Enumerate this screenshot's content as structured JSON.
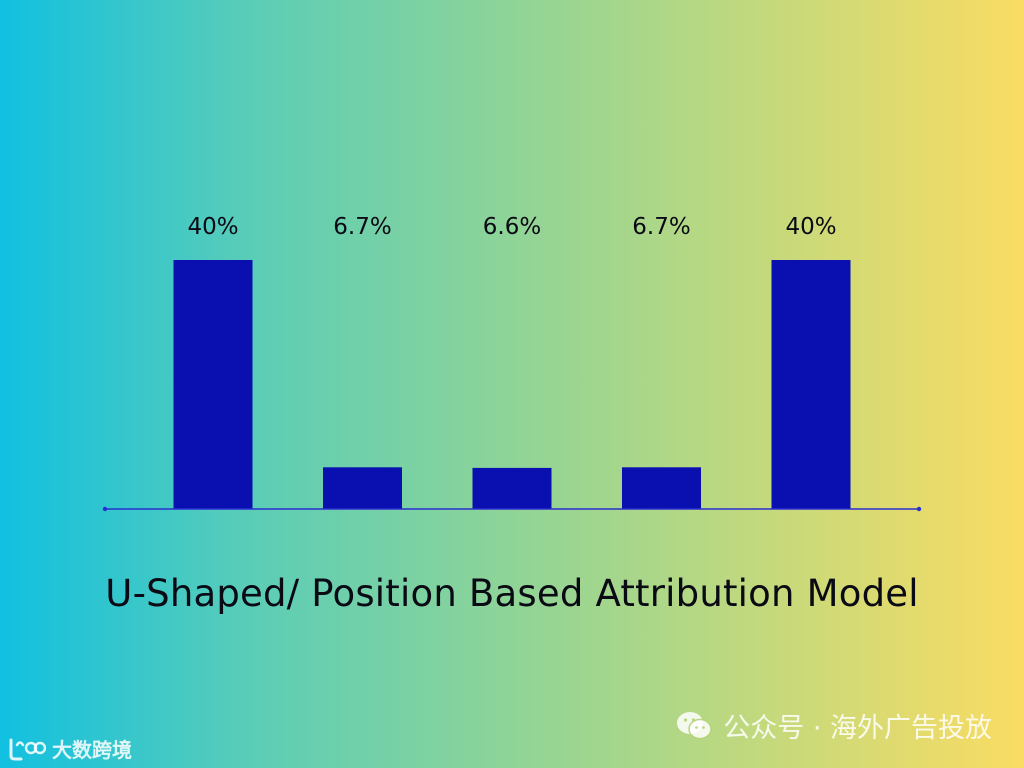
{
  "chart_data": {
    "type": "bar",
    "categories": [
      "",
      "",
      "",
      "",
      ""
    ],
    "values": [
      40,
      6.7,
      6.6,
      6.7,
      40
    ],
    "data_labels": [
      "40%",
      "6.7%",
      "6.6%",
      "6.7%",
      "40%"
    ],
    "title": "U-Shaped/ Position Based Attribution Model",
    "xlabel": "",
    "ylabel": "",
    "ylim": [
      0,
      40
    ],
    "grid": false,
    "bar_color": "#0a0fb0"
  },
  "watermark": {
    "channel": "公众号 · 海外广告投放",
    "icon": "wechat-icon",
    "logo_text": "大数跨境"
  }
}
